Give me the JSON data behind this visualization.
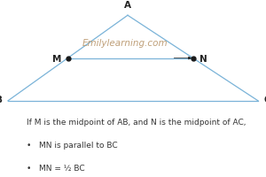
{
  "background_color": "#ffffff",
  "triangle": {
    "A": [
      0.48,
      0.95
    ],
    "B": [
      0.03,
      0.42
    ],
    "C": [
      0.97,
      0.42
    ]
  },
  "midpoints": {
    "M": [
      0.255,
      0.685
    ],
    "N": [
      0.725,
      0.685
    ]
  },
  "triangle_color": "#7ab3d8",
  "mn_line_color": "#7ab3d8",
  "point_color": "#1a1a1a",
  "point_size": 3.5,
  "label_A": "A",
  "label_B": "B",
  "label_C": "C",
  "label_M": "M",
  "label_N": "N",
  "watermark": "Emilylearning.com",
  "watermark_color": "#b8956a",
  "watermark_fontsize": 7.5,
  "text_line1": "If M is the midpoint of AB, and N is the midpoint of AC,",
  "bullet1": "MN is parallel to BC",
  "bullet2": "MN = ½ BC",
  "text_fontsize": 6.5,
  "label_fontsize": 7.5,
  "arrow_color": "#1a1a1a",
  "label_color": "#222222"
}
